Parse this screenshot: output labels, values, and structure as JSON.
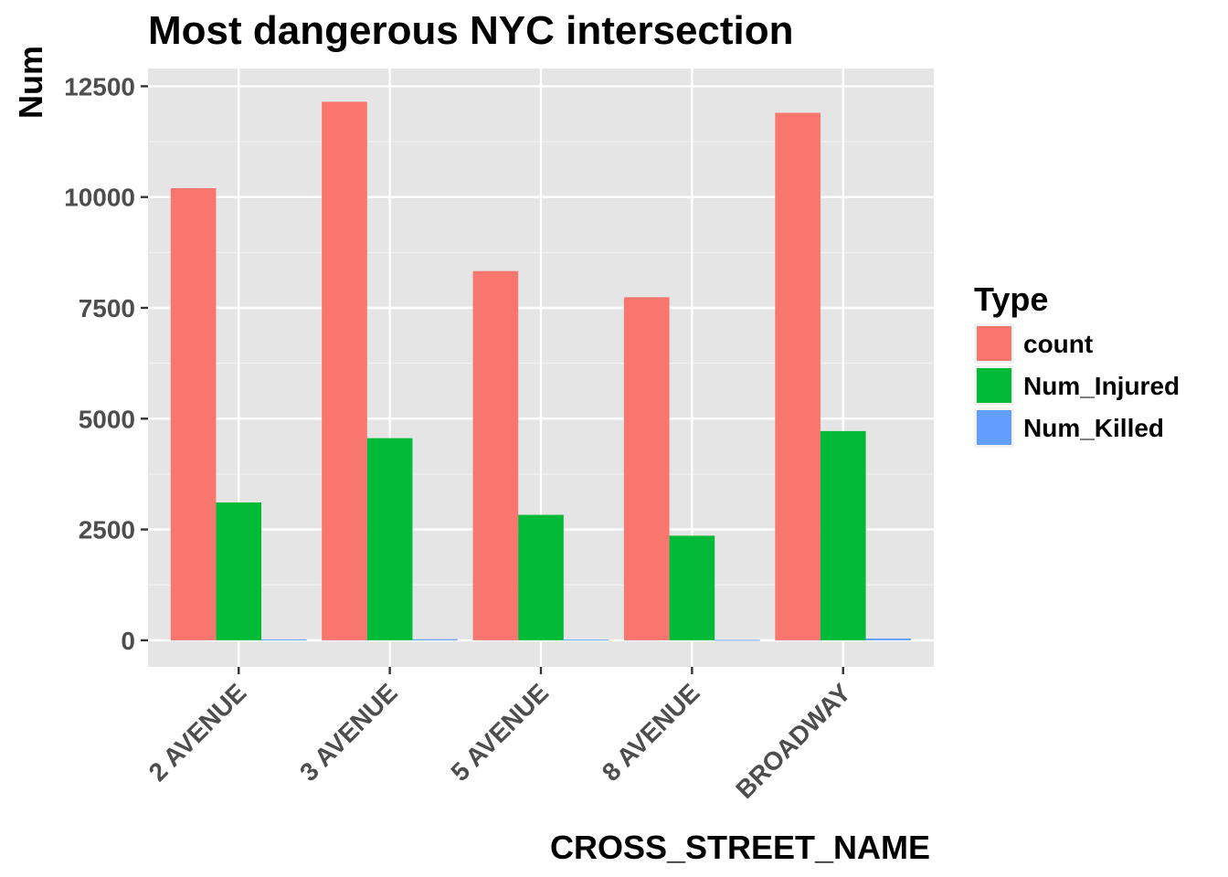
{
  "chart_data": {
    "type": "bar",
    "title": "Most dangerous NYC intersection",
    "xlabel": "CROSS_STREET_NAME",
    "ylabel": "Num",
    "categories": [
      "2 AVENUE",
      "3 AVENUE",
      "5 AVENUE",
      "8 AVENUE",
      "BROADWAY"
    ],
    "series": [
      {
        "name": "count",
        "color": "#F8766D",
        "values": [
          10200,
          12150,
          8330,
          7740,
          11900
        ]
      },
      {
        "name": "Num_Injured",
        "color": "#00BA38",
        "values": [
          3110,
          4560,
          2830,
          2360,
          4720
        ]
      },
      {
        "name": "Num_Killed",
        "color": "#619CFF",
        "values": [
          20,
          25,
          15,
          10,
          40
        ]
      }
    ],
    "ylim": [
      -600,
      12900
    ],
    "y_ticks": [
      0,
      2500,
      5000,
      7500,
      10000,
      12500
    ],
    "y_tick_labels": [
      "0",
      "2500",
      "5000",
      "7500",
      "10000",
      "12500"
    ],
    "grid": true,
    "legend": {
      "title": "Type",
      "position": "right"
    }
  }
}
